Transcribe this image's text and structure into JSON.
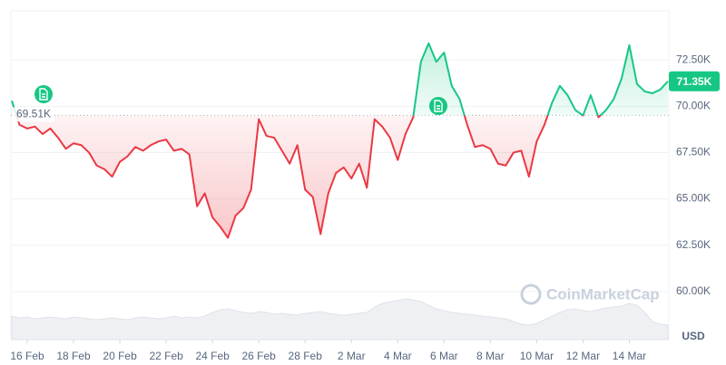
{
  "chart_data": {
    "type": "line",
    "watermark": "CoinMarketCap",
    "currency": "USD",
    "categories": [
      null,
      null,
      "16 Feb",
      null,
      null,
      null,
      null,
      null,
      "18 Feb",
      null,
      null,
      null,
      null,
      null,
      "20 Feb",
      null,
      null,
      null,
      null,
      null,
      "22 Feb",
      null,
      null,
      null,
      null,
      null,
      "24 Feb",
      null,
      null,
      null,
      null,
      null,
      "26 Feb",
      null,
      null,
      null,
      null,
      null,
      "28 Feb",
      null,
      null,
      null,
      null,
      null,
      "2 Mar",
      null,
      null,
      null,
      null,
      null,
      "4 Mar",
      null,
      null,
      null,
      null,
      null,
      "6 Mar",
      null,
      null,
      null,
      null,
      null,
      "8 Mar",
      null,
      null,
      null,
      null,
      null,
      "10 Mar",
      null,
      null,
      null,
      null,
      null,
      "12 Mar",
      null,
      null,
      null,
      null,
      null,
      "14 Mar",
      null,
      null,
      null,
      null,
      null
    ],
    "series": [
      {
        "color_up": "#16c784",
        "color_down": "#ea3943",
        "values": [
          70300,
          69000,
          68800,
          68900,
          68500,
          68800,
          68300,
          67700,
          68000,
          67900,
          67500,
          66800,
          66600,
          66200,
          67000,
          67300,
          67800,
          67600,
          67900,
          68100,
          68200,
          67600,
          67700,
          67400,
          64600,
          65300,
          64000,
          63500,
          62900,
          64100,
          64500,
          65500,
          69300,
          68400,
          68300,
          67600,
          66900,
          67900,
          65500,
          65100,
          63100,
          65300,
          66400,
          66700,
          66100,
          66900,
          65600,
          69300,
          68900,
          68300,
          67100,
          68500,
          69400,
          72400,
          73400,
          72400,
          72900,
          71100,
          70400,
          69000,
          67800,
          67900,
          67700,
          66900,
          66800,
          67500,
          67600,
          66200,
          68100,
          69000,
          70200,
          71100,
          70600,
          69800,
          69500,
          70600,
          69400,
          69800,
          70400,
          71500,
          73300,
          71200,
          70800,
          70700,
          70900,
          71350
        ]
      }
    ],
    "volume": {
      "lim": [
        0,
        100
      ],
      "values": [
        26,
        24,
        25,
        23,
        24,
        25,
        24,
        23,
        25,
        24,
        23,
        22,
        23,
        24,
        23,
        22,
        24,
        25,
        24,
        23,
        24,
        26,
        24,
        25,
        24,
        26,
        30,
        33,
        34,
        32,
        30,
        29,
        31,
        30,
        28,
        29,
        28,
        27,
        29,
        30,
        31,
        29,
        28,
        27,
        28,
        29,
        30,
        36,
        40,
        42,
        43,
        45,
        44,
        42,
        38,
        34,
        32,
        30,
        29,
        28,
        27,
        26,
        25,
        24,
        23,
        20,
        17,
        16,
        18,
        22,
        26,
        30,
        33,
        34,
        32,
        31,
        33,
        35,
        36,
        37,
        40,
        38,
        30,
        20,
        17,
        16
      ]
    },
    "baseline": {
      "value": 69510,
      "label": "69.51K"
    },
    "last_price": {
      "value": 71350,
      "label": "71.35K"
    },
    "ylim": [
      57400,
      75150
    ],
    "yticks": [
      {
        "value": 60000,
        "label": "60.00K"
      },
      {
        "value": 62500,
        "label": "62.50K"
      },
      {
        "value": 65000,
        "label": "65.00K"
      },
      {
        "value": 67500,
        "label": "67.50K"
      },
      {
        "value": 70000,
        "label": "70.00K"
      },
      {
        "value": 72500,
        "label": "72.50K"
      }
    ],
    "grid": true
  }
}
